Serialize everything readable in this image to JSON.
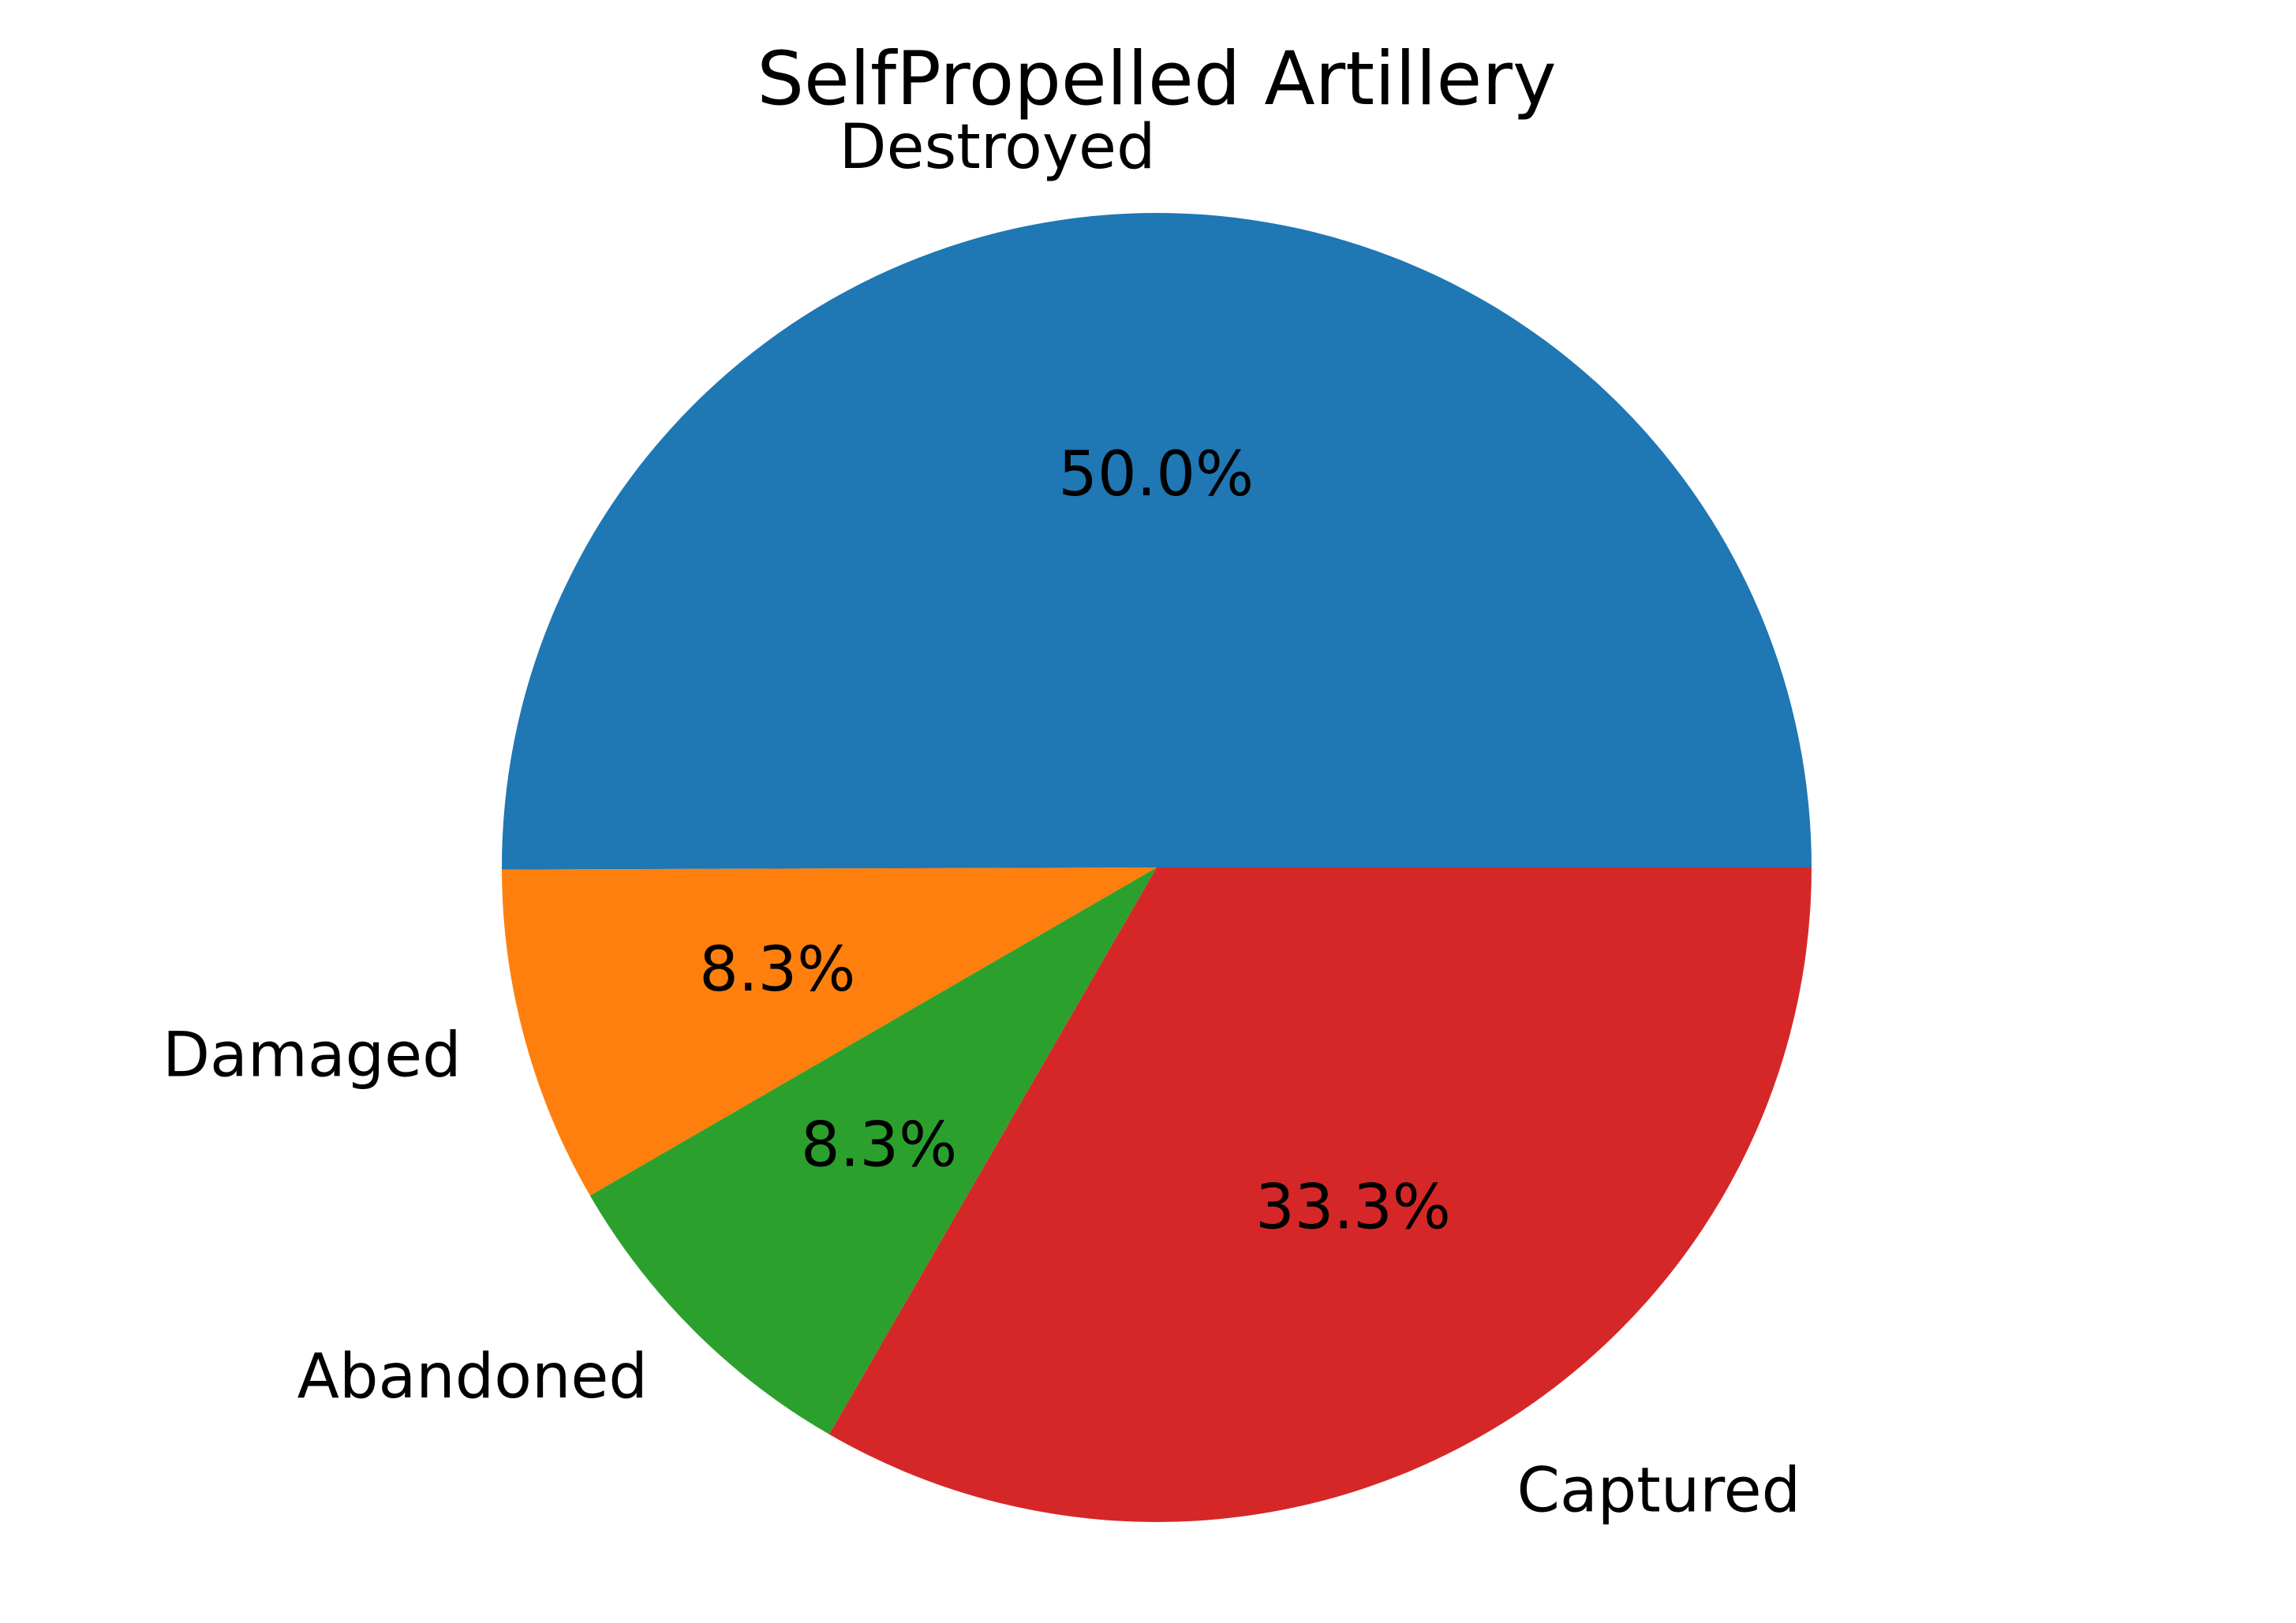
{
  "chart_data": {
    "type": "pie",
    "title": "SelfPropelled Artillery",
    "categories": [
      "Destroyed",
      "Damaged",
      "Abandoned",
      "Captured"
    ],
    "values": [
      50.0,
      8.3,
      8.3,
      33.3
    ],
    "percent_labels": [
      "50.0%",
      "8.3%",
      "8.3%",
      "33.3%"
    ],
    "colors": [
      "#1f77b4",
      "#ff7f0e",
      "#2ca02c",
      "#d62728"
    ],
    "start_angle_deg": 0,
    "direction": "counterclockwise",
    "legend": "none"
  }
}
